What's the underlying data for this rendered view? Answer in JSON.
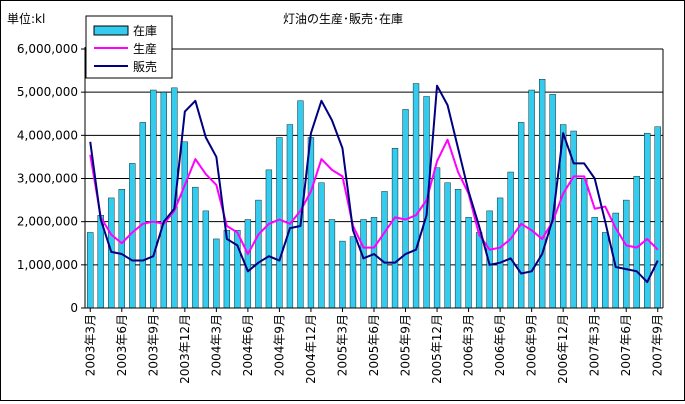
{
  "chart_data": {
    "type": "bar",
    "title": "灯油の生産･販売･在庫",
    "unit_label": "単位:kl",
    "ylim": [
      0,
      6000000
    ],
    "yticks": [
      0,
      1000000,
      2000000,
      3000000,
      4000000,
      5000000,
      6000000
    ],
    "ytick_labels": [
      "0",
      "1,000,000",
      "2,000,000",
      "3,000,000",
      "4,000,000",
      "5,000,000",
      "6,000,000"
    ],
    "grid": true,
    "legend_position": "top-left",
    "x_tick_labels": [
      "2003年3月",
      "2003年6月",
      "2003年9月",
      "2003年12月",
      "2004年3月",
      "2004年6月",
      "2004年9月",
      "2004年12月",
      "2005年3月",
      "2005年6月",
      "2005年9月",
      "2005年12月",
      "2006年3月",
      "2006年6月",
      "2006年9月",
      "2006年12月",
      "2007年3月",
      "2007年6月",
      "2007年9月"
    ],
    "categories": [
      "2003年3月",
      "2003年4月",
      "2003年5月",
      "2003年6月",
      "2003年7月",
      "2003年8月",
      "2003年9月",
      "2003年10月",
      "2003年11月",
      "2003年12月",
      "2004年1月",
      "2004年2月",
      "2004年3月",
      "2004年4月",
      "2004年5月",
      "2004年6月",
      "2004年7月",
      "2004年8月",
      "2004年9月",
      "2004年10月",
      "2004年11月",
      "2004年12月",
      "2005年1月",
      "2005年2月",
      "2005年3月",
      "2005年4月",
      "2005年5月",
      "2005年6月",
      "2005年7月",
      "2005年8月",
      "2005年9月",
      "2005年10月",
      "2005年11月",
      "2005年12月",
      "2006年1月",
      "2006年2月",
      "2006年3月",
      "2006年4月",
      "2006年5月",
      "2006年6月",
      "2006年7月",
      "2006年8月",
      "2006年9月",
      "2006年10月",
      "2006年11月",
      "2006年12月",
      "2007年1月",
      "2007年2月",
      "2007年3月",
      "2007年4月",
      "2007年5月",
      "2007年6月",
      "2007年7月",
      "2007年8月",
      "2007年9月"
    ],
    "series": [
      {
        "name": "在庫",
        "type": "bar",
        "color": "#33CCEE",
        "values": [
          1750000,
          2150000,
          2550000,
          2750000,
          3350000,
          4300000,
          5050000,
          5000000,
          5100000,
          3850000,
          2800000,
          2250000,
          1600000,
          1800000,
          1800000,
          2050000,
          2500000,
          3200000,
          3950000,
          4250000,
          4800000,
          3950000,
          2900000,
          2050000,
          1550000,
          1650000,
          2050000,
          2100000,
          2700000,
          3700000,
          4600000,
          5200000,
          4900000,
          3250000,
          2900000,
          2750000,
          2100000,
          1750000,
          2250000,
          2550000,
          3150000,
          4300000,
          5050000,
          5300000,
          4950000,
          4250000,
          4100000,
          3000000,
          2100000,
          1750000,
          2200000,
          2500000,
          3050000,
          4050000,
          4200000
        ]
      },
      {
        "name": "生産",
        "type": "line",
        "color": "#FF00FF",
        "values": [
          3550000,
          2100000,
          1700000,
          1500000,
          1750000,
          1950000,
          2000000,
          1950000,
          2250000,
          2850000,
          3450000,
          3100000,
          2850000,
          1900000,
          1750000,
          1250000,
          1700000,
          1950000,
          2050000,
          1950000,
          2250000,
          2700000,
          3450000,
          3200000,
          3050000,
          1900000,
          1400000,
          1400000,
          1750000,
          2100000,
          2050000,
          2150000,
          2500000,
          3400000,
          3900000,
          3150000,
          2650000,
          1700000,
          1350000,
          1400000,
          1600000,
          1950000,
          1800000,
          1600000,
          2000000,
          2650000,
          3050000,
          3050000,
          2300000,
          2350000,
          1850000,
          1450000,
          1400000,
          1600000,
          1350000
        ]
      },
      {
        "name": "販売",
        "type": "line",
        "color": "#000080",
        "values": [
          3850000,
          2050000,
          1300000,
          1250000,
          1100000,
          1100000,
          1200000,
          2000000,
          2300000,
          4550000,
          4800000,
          3950000,
          3500000,
          1600000,
          1450000,
          850000,
          1050000,
          1200000,
          1100000,
          1850000,
          1900000,
          4050000,
          4800000,
          4350000,
          3700000,
          1800000,
          1150000,
          1250000,
          1050000,
          1050000,
          1250000,
          1350000,
          2150000,
          5150000,
          4700000,
          3700000,
          2700000,
          1900000,
          1000000,
          1050000,
          1150000,
          800000,
          850000,
          1250000,
          2050000,
          4050000,
          3350000,
          3350000,
          3000000,
          2000000,
          950000,
          900000,
          850000,
          600000,
          1100000
        ]
      }
    ]
  }
}
